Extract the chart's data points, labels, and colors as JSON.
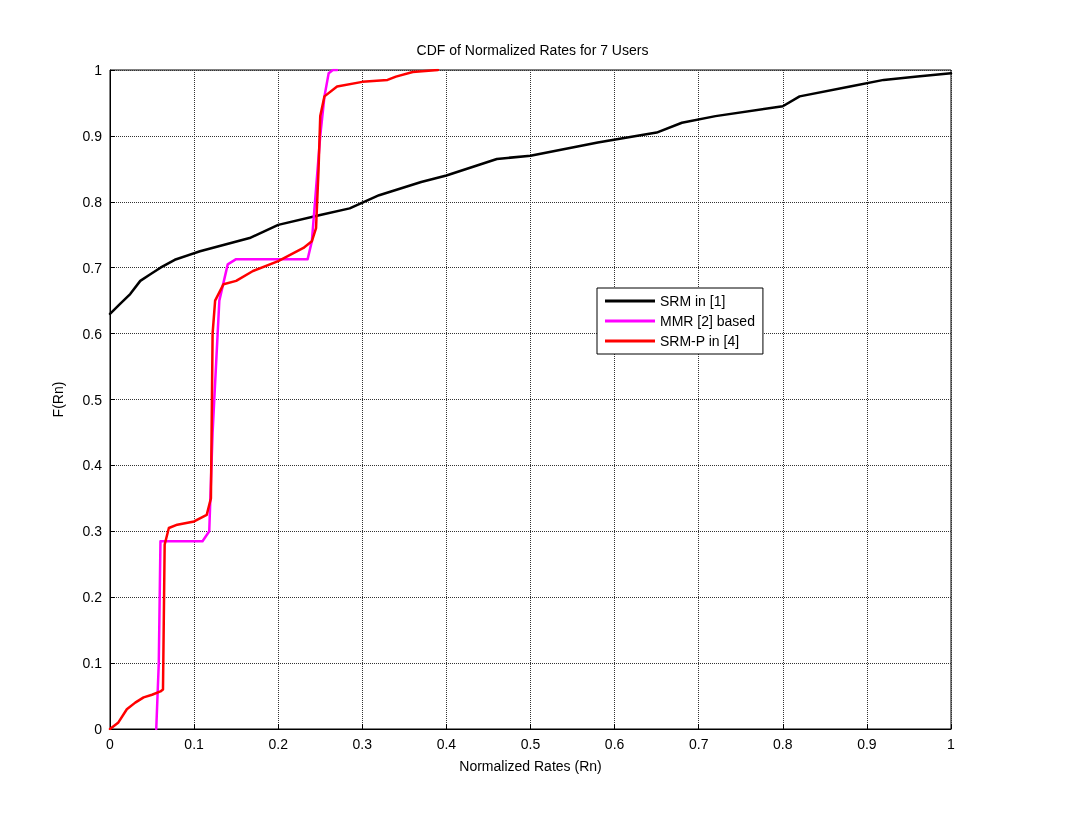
{
  "chart_data": {
    "type": "line",
    "title": "CDF of Normalized Rates for 7 Users",
    "xlabel": "Normalized Rates (Rn)",
    "ylabel": "F(Rn)",
    "xlim": [
      0,
      1
    ],
    "xticks": [
      0,
      0.1,
      0.2,
      0.3,
      0.4,
      0.5,
      0.6,
      0.7,
      0.8,
      0.9,
      1
    ],
    "ylim": [
      0,
      1
    ],
    "yticks": [
      0,
      0.1,
      0.2,
      0.3,
      0.4,
      0.5,
      0.6,
      0.7,
      0.8,
      0.9,
      1
    ],
    "grid": true,
    "legend": "right",
    "marker": "none",
    "line_style": "solid",
    "series": [
      {
        "name": "SRM in [1]",
        "color": "#000000",
        "x": [
          0,
          0.012,
          0.024,
          0.036,
          0.048,
          0.06,
          0.077,
          0.107,
          0.166,
          0.2,
          0.25,
          0.285,
          0.32,
          0.37,
          0.4,
          0.46,
          0.5,
          0.58,
          0.65,
          0.68,
          0.72,
          0.8,
          0.82,
          0.88,
          0.92,
          0.96,
          1
        ],
        "values": [
          0.63,
          0.645,
          0.66,
          0.68,
          0.69,
          0.7,
          0.712,
          0.725,
          0.745,
          0.765,
          0.78,
          0.79,
          0.81,
          0.83,
          0.84,
          0.865,
          0.87,
          0.89,
          0.905,
          0.92,
          0.93,
          0.945,
          0.96,
          0.975,
          0.985,
          0.99,
          0.995
        ]
      },
      {
        "name": "MMR [2] based",
        "color": "#ff00ff",
        "x": [
          0.055,
          0.058,
          0.06,
          0.11,
          0.118,
          0.122,
          0.13,
          0.14,
          0.15,
          0.235,
          0.24,
          0.245,
          0.25,
          0.255,
          0.26,
          0.265,
          0.27
        ],
        "values": [
          0,
          0.1,
          0.285,
          0.285,
          0.3,
          0.45,
          0.65,
          0.705,
          0.713,
          0.713,
          0.74,
          0.82,
          0.9,
          0.96,
          0.995,
          1,
          1
        ]
      },
      {
        "name": "SRM-P in [4]",
        "color": "#ff0000",
        "x": [
          0,
          0.01,
          0.02,
          0.03,
          0.04,
          0.05,
          0.06,
          0.063,
          0.065,
          0.07,
          0.08,
          0.1,
          0.115,
          0.12,
          0.122,
          0.125,
          0.135,
          0.15,
          0.17,
          0.2,
          0.23,
          0.24,
          0.245,
          0.248,
          0.25,
          0.255,
          0.27,
          0.3,
          0.33,
          0.34,
          0.36,
          0.39
        ],
        "values": [
          0,
          0.01,
          0.03,
          0.04,
          0.048,
          0.052,
          0.057,
          0.06,
          0.28,
          0.305,
          0.31,
          0.315,
          0.325,
          0.35,
          0.6,
          0.65,
          0.675,
          0.68,
          0.695,
          0.71,
          0.73,
          0.74,
          0.76,
          0.85,
          0.93,
          0.96,
          0.975,
          0.982,
          0.985,
          0.99,
          0.997,
          1
        ]
      }
    ]
  }
}
